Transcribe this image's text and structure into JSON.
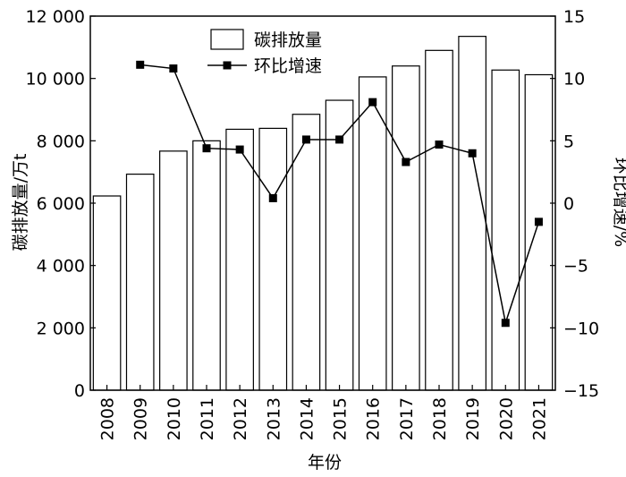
{
  "chart_data": {
    "type": "bar",
    "categories": [
      "2008",
      "2009",
      "2010",
      "2011",
      "2012",
      "2013",
      "2014",
      "2015",
      "2016",
      "2017",
      "2018",
      "2019",
      "2020",
      "2021"
    ],
    "series": [
      {
        "name": "碳排放量",
        "type": "bar",
        "axis": "left",
        "values": [
          6230,
          6930,
          7670,
          8000,
          8370,
          8400,
          8850,
          9300,
          10050,
          10400,
          10900,
          11350,
          10270,
          10120
        ]
      },
      {
        "name": "环比增速",
        "type": "line",
        "axis": "right",
        "marker": "square",
        "values": [
          null,
          11.1,
          10.8,
          4.4,
          4.3,
          0.4,
          5.1,
          5.1,
          8.1,
          3.3,
          4.7,
          4.0,
          -9.6,
          -1.5
        ]
      }
    ],
    "xlabel": "年份",
    "ylabel_left": "碳排放量/万t",
    "ylabel_right": "环比增速/%",
    "ylim_left": [
      0,
      12000
    ],
    "ylim_right": [
      -15,
      15
    ],
    "yticks_left": [
      0,
      2000,
      4000,
      6000,
      8000,
      10000,
      12000
    ],
    "yticks_left_labels": [
      "0",
      "2 000",
      "4 000",
      "6 000",
      "8 000",
      "10 000",
      "12 000"
    ],
    "yticks_right": [
      -15,
      -10,
      -5,
      0,
      5,
      10,
      15
    ],
    "yticks_right_labels": [
      "−15",
      "−10",
      "−5",
      "0",
      "5",
      "10",
      "15"
    ],
    "grid": false,
    "legend_position": "top-center",
    "colors": {
      "bar_fill": "#ffffff",
      "stroke": "#000000"
    }
  }
}
